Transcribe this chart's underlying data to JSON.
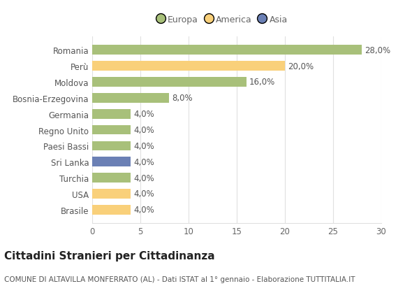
{
  "title": "Cittadini Stranieri per Cittadinanza",
  "subtitle": "COMUNE DI ALTAVILLA MONFERRATO (AL) - Dati ISTAT al 1° gennaio - Elaborazione TUTTITALIA.IT",
  "categories": [
    "Romania",
    "Perù",
    "Moldova",
    "Bosnia-Erzegovina",
    "Germania",
    "Regno Unito",
    "Paesi Bassi",
    "Sri Lanka",
    "Turchia",
    "USA",
    "Brasile"
  ],
  "values": [
    28.0,
    20.0,
    16.0,
    8.0,
    4.0,
    4.0,
    4.0,
    4.0,
    4.0,
    4.0,
    4.0
  ],
  "bar_colors": [
    "#a8c07a",
    "#f9d07a",
    "#a8c07a",
    "#a8c07a",
    "#a8c07a",
    "#a8c07a",
    "#a8c07a",
    "#6b80b5",
    "#a8c07a",
    "#f9d07a",
    "#f9d07a"
  ],
  "legend_labels": [
    "Europa",
    "America",
    "Asia"
  ],
  "legend_colors": [
    "#a8c07a",
    "#f9d07a",
    "#6b80b5"
  ],
  "xlim": [
    0,
    30
  ],
  "xticks": [
    0,
    5,
    10,
    15,
    20,
    25,
    30
  ],
  "bar_height": 0.6,
  "label_fontsize": 8.5,
  "tick_fontsize": 8.5,
  "title_fontsize": 11,
  "subtitle_fontsize": 7.5,
  "legend_fontsize": 9,
  "value_label_color": "#555555",
  "bg_color": "#ffffff",
  "grid_color": "#e0e0e0",
  "axis_label_color": "#666666",
  "ytick_color": "#555555"
}
